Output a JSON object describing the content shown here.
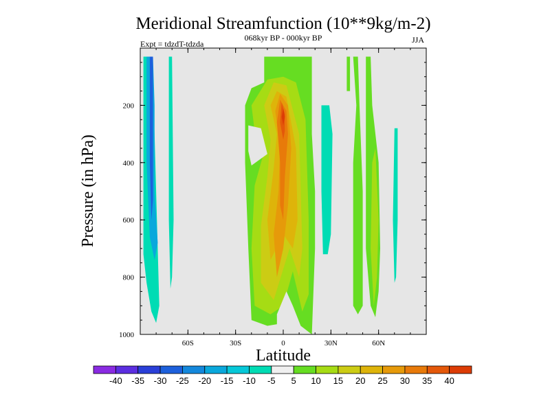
{
  "chart_data": {
    "type": "heatmap",
    "title": "Meridional Streamfunction (10**9kg/m-2)",
    "subtitle": "068kyr BP - 000kyr BP",
    "experiment_label": "Expt = tdzdT-tdzda",
    "season": "JJA",
    "xlabel": "Latitude",
    "ylabel": "Pressure (in hPa)",
    "xlim": [
      -90,
      90
    ],
    "ylim": [
      1000,
      0
    ],
    "x_ticks": [
      {
        "value": -60,
        "label": "60S"
      },
      {
        "value": -30,
        "label": "30S"
      },
      {
        "value": 0,
        "label": "0"
      },
      {
        "value": 30,
        "label": "30N"
      },
      {
        "value": 60,
        "label": "60N"
      }
    ],
    "y_ticks": [
      {
        "value": 200,
        "label": "200"
      },
      {
        "value": 400,
        "label": "400"
      },
      {
        "value": 600,
        "label": "600"
      },
      {
        "value": 800,
        "label": "800"
      },
      {
        "value": 1000,
        "label": "1000"
      }
    ],
    "background_color": "#e6e6e6",
    "colorbar": {
      "levels": [
        -40,
        -35,
        -30,
        -25,
        -20,
        -15,
        -10,
        -5,
        5,
        10,
        15,
        20,
        25,
        30,
        35,
        40
      ],
      "labels": [
        "-40",
        "-35",
        "-30",
        "-25",
        "-20",
        "-15",
        "-10",
        "-5",
        "5",
        "10",
        "15",
        "20",
        "25",
        "30",
        "35",
        "40"
      ],
      "colors": [
        "#8a2be2",
        "#5b2ee0",
        "#2a3fd8",
        "#1d60dc",
        "#1488dc",
        "#0aa8dc",
        "#06c8d8",
        "#00dcb4",
        "#f0f0f0",
        "#66dd22",
        "#a6dc14",
        "#cccc14",
        "#deb40a",
        "#e69a0a",
        "#e87a0a",
        "#e4580a",
        "#dc3c06"
      ]
    },
    "regions": [
      {
        "name": "sh-cell-outer",
        "level": -10,
        "color": "#00dcb4",
        "points": [
          [
            -88,
            30
          ],
          [
            -83,
            30
          ],
          [
            -81,
            300
          ],
          [
            -79,
            700
          ],
          [
            -78,
            900
          ],
          [
            -80,
            960
          ],
          [
            -83,
            920
          ],
          [
            -86,
            820
          ],
          [
            -88,
            720
          ]
        ]
      },
      {
        "name": "sh-cell-inner",
        "level": -15,
        "color": "#0aa8dc",
        "points": [
          [
            -86,
            30
          ],
          [
            -82,
            30
          ],
          [
            -81,
            200
          ],
          [
            -81,
            500
          ],
          [
            -79,
            680
          ],
          [
            -81,
            740
          ],
          [
            -84,
            660
          ],
          [
            -86,
            400
          ]
        ]
      },
      {
        "name": "sh-cell-core",
        "level": -20,
        "color": "#1d60dc",
        "points": [
          [
            -84,
            30
          ],
          [
            -82,
            30
          ],
          [
            -82,
            250
          ],
          [
            -82,
            530
          ],
          [
            -83,
            600
          ],
          [
            -84,
            400
          ]
        ]
      },
      {
        "name": "sh-secondary-strip",
        "level": -10,
        "color": "#00dcb4",
        "points": [
          [
            -72,
            30
          ],
          [
            -70,
            30
          ],
          [
            -69,
            600
          ],
          [
            -70,
            800
          ],
          [
            -71,
            840
          ],
          [
            -72,
            600
          ]
        ]
      },
      {
        "name": "tropical-outer",
        "level": 5,
        "color": "#66dd22",
        "points": [
          [
            -12,
            30
          ],
          [
            4,
            30
          ],
          [
            18,
            30
          ],
          [
            18,
            300
          ],
          [
            20,
            500
          ],
          [
            20,
            700
          ],
          [
            18,
            1000
          ],
          [
            11,
            970
          ],
          [
            6,
            900
          ],
          [
            1,
            960
          ],
          [
            -10,
            970
          ],
          [
            -20,
            950
          ],
          [
            -22,
            700
          ],
          [
            -24,
            400
          ],
          [
            -24,
            200
          ],
          [
            -20,
            140
          ],
          [
            -12,
            120
          ]
        ]
      },
      {
        "name": "tropical-10",
        "level": 10,
        "color": "#a6dc14",
        "points": [
          [
            -10,
            110
          ],
          [
            0,
            100
          ],
          [
            8,
            120
          ],
          [
            14,
            250
          ],
          [
            16,
            600
          ],
          [
            16,
            860
          ],
          [
            12,
            920
          ],
          [
            6,
            780
          ],
          [
            0,
            900
          ],
          [
            -8,
            930
          ],
          [
            -18,
            900
          ],
          [
            -20,
            700
          ],
          [
            -18,
            480
          ],
          [
            -12,
            360
          ],
          [
            -18,
            290
          ],
          [
            -20,
            200
          ]
        ]
      },
      {
        "name": "tropical-15",
        "level": 15,
        "color": "#cccc14",
        "points": [
          [
            -6,
            120
          ],
          [
            2,
            130
          ],
          [
            10,
            300
          ],
          [
            12,
            700
          ],
          [
            10,
            800
          ],
          [
            4,
            700
          ],
          [
            -6,
            880
          ],
          [
            -14,
            820
          ],
          [
            -14,
            620
          ],
          [
            -10,
            450
          ],
          [
            -8,
            320
          ],
          [
            -12,
            200
          ]
        ]
      },
      {
        "name": "tropical-20",
        "level": 20,
        "color": "#deb40a",
        "points": [
          [
            -4,
            150
          ],
          [
            2,
            170
          ],
          [
            8,
            350
          ],
          [
            9,
            600
          ],
          [
            6,
            700
          ],
          [
            0,
            650
          ],
          [
            -8,
            740
          ],
          [
            -10,
            600
          ],
          [
            -6,
            420
          ],
          [
            -4,
            300
          ],
          [
            -8,
            200
          ]
        ]
      },
      {
        "name": "tropical-25",
        "level": 25,
        "color": "#e69a0a",
        "points": [
          [
            -2,
            160
          ],
          [
            3,
            200
          ],
          [
            5,
            350
          ],
          [
            3,
            550
          ],
          [
            0,
            700
          ],
          [
            -4,
            800
          ],
          [
            -6,
            650
          ],
          [
            -3,
            500
          ],
          [
            -2,
            350
          ],
          [
            -5,
            220
          ]
        ]
      },
      {
        "name": "tropical-30",
        "level": 30,
        "color": "#e87a0a",
        "points": [
          [
            -2,
            180
          ],
          [
            2,
            220
          ],
          [
            3,
            300
          ],
          [
            1,
            450
          ],
          [
            0,
            600
          ],
          [
            -2,
            550
          ],
          [
            -2,
            400
          ],
          [
            -4,
            260
          ]
        ]
      },
      {
        "name": "tropical-35",
        "level": 35,
        "color": "#e4580a",
        "points": [
          [
            -1,
            190
          ],
          [
            1,
            230
          ],
          [
            1,
            290
          ],
          [
            0,
            320
          ],
          [
            -2,
            260
          ]
        ]
      },
      {
        "name": "tropical-40",
        "level": 40,
        "color": "#dc3c06",
        "points": [
          [
            0,
            210
          ],
          [
            1,
            240
          ],
          [
            0,
            270
          ],
          [
            -1,
            240
          ]
        ]
      },
      {
        "name": "tropical-gap",
        "level": 0,
        "color": "#e6e6e6",
        "points": [
          [
            -22,
            270
          ],
          [
            -14,
            280
          ],
          [
            -10,
            370
          ],
          [
            -20,
            410
          ],
          [
            -22,
            360
          ]
        ]
      },
      {
        "name": "tropical-lower-gap",
        "level": 0,
        "color": "#e6e6e6",
        "points": [
          [
            -4,
            930
          ],
          [
            2,
            850
          ],
          [
            6,
            900
          ],
          [
            2,
            980
          ],
          [
            -4,
            980
          ]
        ]
      },
      {
        "name": "nh-cyan-cell",
        "level": -10,
        "color": "#00dcb4",
        "points": [
          [
            24,
            200
          ],
          [
            29,
            200
          ],
          [
            31,
            300
          ],
          [
            30,
            650
          ],
          [
            28,
            720
          ],
          [
            25,
            720
          ],
          [
            24,
            500
          ]
        ]
      },
      {
        "name": "nh-green-a",
        "level": 5,
        "color": "#66dd22",
        "points": [
          [
            40,
            30
          ],
          [
            42,
            30
          ],
          [
            42,
            150
          ],
          [
            40,
            150
          ]
        ]
      },
      {
        "name": "nh-green-b",
        "level": 5,
        "color": "#66dd22",
        "points": [
          [
            44,
            30
          ],
          [
            47,
            30
          ],
          [
            48,
            200
          ],
          [
            50,
            500
          ],
          [
            50,
            900
          ],
          [
            47,
            930
          ],
          [
            44,
            900
          ],
          [
            44,
            400
          ],
          [
            46,
            200
          ]
        ]
      },
      {
        "name": "nh-green-c",
        "level": 5,
        "color": "#66dd22",
        "points": [
          [
            52,
            30
          ],
          [
            55,
            30
          ],
          [
            56,
            200
          ],
          [
            60,
            400
          ],
          [
            61,
            700
          ],
          [
            60,
            850
          ],
          [
            58,
            940
          ],
          [
            55,
            900
          ],
          [
            52,
            700
          ],
          [
            52,
            400
          ]
        ]
      },
      {
        "name": "nh-yellow",
        "level": 10,
        "color": "#a6dc14",
        "points": [
          [
            56,
            400
          ],
          [
            58,
            350
          ],
          [
            60,
            600
          ],
          [
            59,
            800
          ],
          [
            57,
            900
          ],
          [
            55,
            700
          ]
        ]
      },
      {
        "name": "nh-cyan-strip",
        "level": -10,
        "color": "#00dcb4",
        "points": [
          [
            70,
            280
          ],
          [
            72,
            280
          ],
          [
            72,
            600
          ],
          [
            71,
            800
          ],
          [
            70,
            820
          ],
          [
            69,
            600
          ]
        ]
      }
    ]
  }
}
